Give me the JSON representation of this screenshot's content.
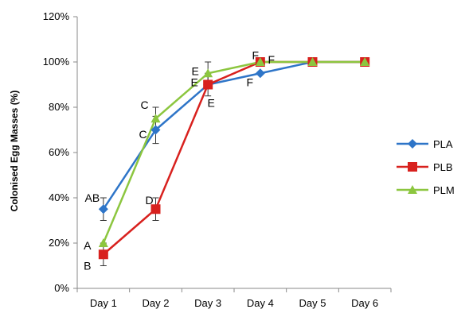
{
  "chart_data": {
    "type": "line",
    "title": "",
    "xlabel": "",
    "ylabel": "Colonised Egg Masses (%)",
    "categories": [
      "Day 1",
      "Day 2",
      "Day 3",
      "Day 4",
      "Day 5",
      "Day 6"
    ],
    "ylim": [
      0,
      120
    ],
    "yticks": [
      0,
      20,
      40,
      60,
      80,
      100,
      120
    ],
    "ytick_labels": [
      "0%",
      "20%",
      "40%",
      "60%",
      "80%",
      "100%",
      "120%"
    ],
    "grid": false,
    "legend_position": "right",
    "series": [
      {
        "name": "PLA",
        "color": "#2E75C8",
        "marker": "diamond",
        "values": [
          35,
          70,
          90,
          95,
          100,
          100
        ],
        "errors": [
          5,
          6,
          5,
          0,
          0,
          0
        ]
      },
      {
        "name": "PLB",
        "color": "#D8211E",
        "marker": "square",
        "values": [
          15,
          35,
          90,
          100,
          100,
          100
        ],
        "errors": [
          5,
          5,
          0,
          0,
          0,
          0
        ]
      },
      {
        "name": "PLM",
        "color": "#8CC63F",
        "marker": "triangle",
        "values": [
          20,
          75,
          95,
          100,
          100,
          100
        ],
        "errors": [
          0,
          5,
          5,
          0,
          0,
          0
        ]
      }
    ],
    "annotations": [
      {
        "text": "AB",
        "category": 0,
        "value": 40
      },
      {
        "text": "A",
        "category": 0,
        "value": 19
      },
      {
        "text": "B",
        "category": 0,
        "value": 10
      },
      {
        "text": "C",
        "category": 1,
        "value": 81
      },
      {
        "text": "C",
        "category": 1,
        "value": 68
      },
      {
        "text": "D",
        "category": 1,
        "value": 39
      },
      {
        "text": "E",
        "category": 2,
        "value": 96
      },
      {
        "text": "E",
        "category": 2,
        "value": 91
      },
      {
        "text": "E",
        "category": 2,
        "value": 82
      },
      {
        "text": "F",
        "category": 3,
        "value": 103
      },
      {
        "text": "F",
        "category": 3,
        "value": 101
      },
      {
        "text": "F",
        "category": 3,
        "value": 91
      }
    ]
  }
}
